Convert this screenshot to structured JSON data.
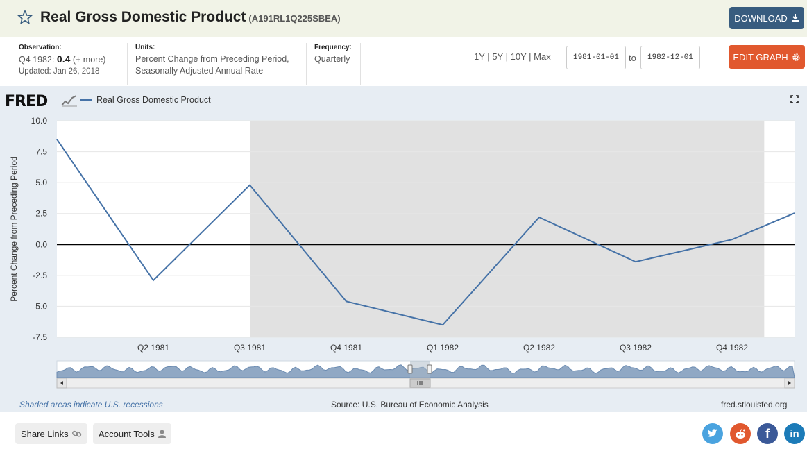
{
  "header": {
    "title": "Real Gross Domestic Product",
    "series_id": "(A191RL1Q225SBEA)",
    "download_label": "DOWNLOAD"
  },
  "meta": {
    "observation_label": "Observation:",
    "observation_period": "Q4 1982:",
    "observation_value": "0.4",
    "observation_more": "(+ more)",
    "updated": "Updated: Jan 26, 2018",
    "units_label": "Units:",
    "units_line1": "Percent Change from Preceding Period,",
    "units_line2": "Seasonally Adjusted Annual Rate",
    "frequency_label": "Frequency:",
    "frequency_value": "Quarterly"
  },
  "range": {
    "links": [
      "1Y",
      "5Y",
      "10Y",
      "Max"
    ],
    "separator": "|",
    "from": "1981-01-01",
    "to_label": "to",
    "to": "1982-12-01",
    "edit_label": "EDIT GRAPH"
  },
  "graph": {
    "logo": "FRED",
    "legend_label": "Real Gross Domestic Product",
    "footer_left": "Shaded areas indicate U.S. recessions",
    "footer_source": "Source: U.S. Bureau of Economic Analysis",
    "footer_site": "fred.stlouisfed.org"
  },
  "chart_data": {
    "type": "line",
    "x": [
      "1981-01-01",
      "1981-04-01",
      "1981-07-01",
      "1981-10-01",
      "1982-01-01",
      "1982-04-01",
      "1982-07-01",
      "1982-10-01"
    ],
    "x_tick_labels": [
      "Q2 1981",
      "Q3 1981",
      "Q4 1981",
      "Q1 1982",
      "Q2 1982",
      "Q3 1982",
      "Q4 1982"
    ],
    "series": [
      {
        "name": "Real Gross Domestic Product",
        "values": [
          8.5,
          -2.9,
          4.8,
          -4.6,
          -6.5,
          2.2,
          -1.4,
          0.4
        ],
        "color": "#4572a7"
      }
    ],
    "extension_value": 3.7,
    "ylabel": "Percent Change from Preceding Period",
    "y_tick_labels": [
      "10.0",
      "7.5",
      "5.0",
      "2.5",
      "0.0",
      "-2.5",
      "-5.0",
      "-7.5"
    ],
    "ylim": [
      -7.5,
      10.0
    ],
    "recession": [
      "1981-07-01",
      "1982-11-01"
    ],
    "grid": true,
    "legend_position": "top-left"
  },
  "tools": {
    "share_label": "Share Links",
    "account_label": "Account Tools"
  },
  "colors": {
    "line": "#4572a7",
    "recession": "#e1e1e1",
    "panel": "#e7edf3",
    "download": "#385c7f",
    "edit": "#e1582e",
    "twitter": "#4aa3df",
    "reddit": "#e1582e",
    "facebook": "#3b5998",
    "linkedin": "#1c7bb8"
  }
}
